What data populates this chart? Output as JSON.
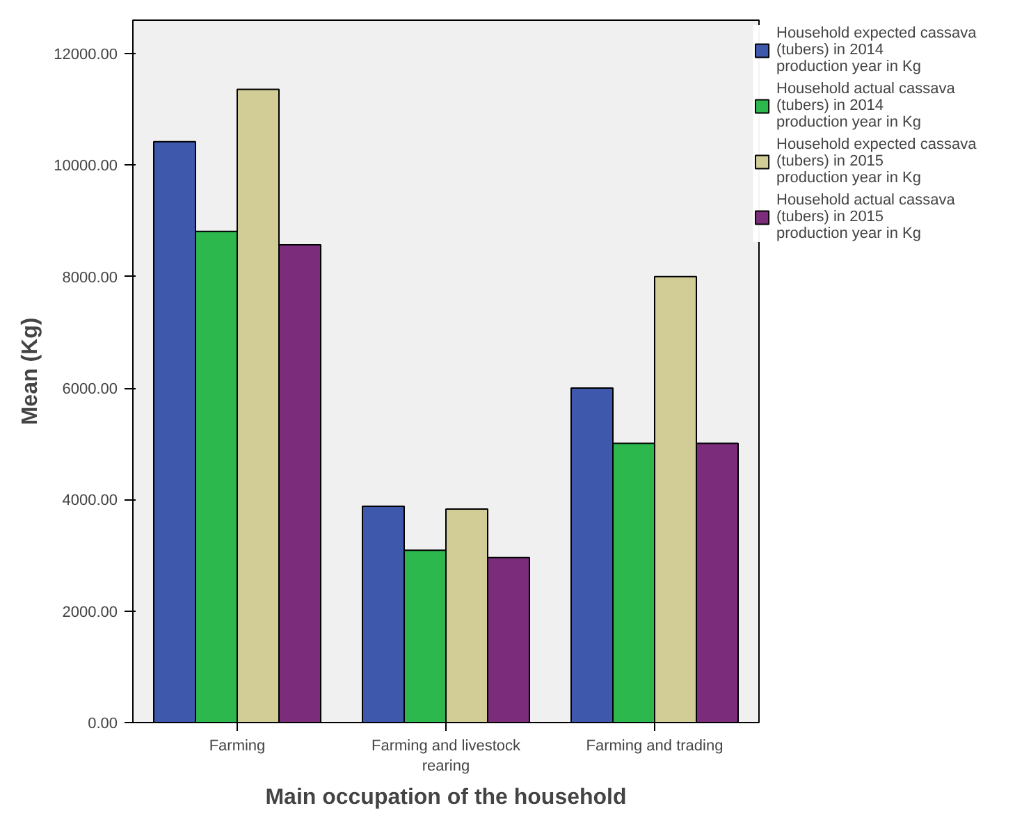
{
  "chart_data": {
    "type": "bar",
    "xlabel": "Main occupation of the household",
    "ylabel": "Mean (Kg)",
    "categories": [
      "Farming",
      "Farming and livestock rearing",
      "Farming and trading"
    ],
    "series": [
      {
        "name": "Household expected cassava (tubers) in 2014 production year in Kg",
        "color": "#3e58ac",
        "values": [
          10420,
          3880,
          6000
        ]
      },
      {
        "name": "Household actual cassava (tubers) in 2014 production year in Kg",
        "color": "#2db84d",
        "values": [
          8810,
          3090,
          5010
        ]
      },
      {
        "name": "Household expected cassava (tubers) in 2015 production year in Kg",
        "color": "#d2cd96",
        "values": [
          11360,
          3830,
          8000
        ]
      },
      {
        "name": "Household actual cassava (tubers) in 2015 production year in Kg",
        "color": "#7b2c7b",
        "values": [
          8570,
          2960,
          5010
        ]
      }
    ],
    "ylim": [
      0,
      12600
    ],
    "yticks": [
      {
        "value": 0,
        "label": "0.00"
      },
      {
        "value": 2000,
        "label": "2000.00"
      },
      {
        "value": 4000,
        "label": "4000.00"
      },
      {
        "value": 6000,
        "label": "6000.00"
      },
      {
        "value": 8000,
        "label": "8000.00"
      },
      {
        "value": 10000,
        "label": "10000.00"
      },
      {
        "value": 12000,
        "label": "12000.00"
      }
    ],
    "grid": false,
    "legend": "right"
  }
}
